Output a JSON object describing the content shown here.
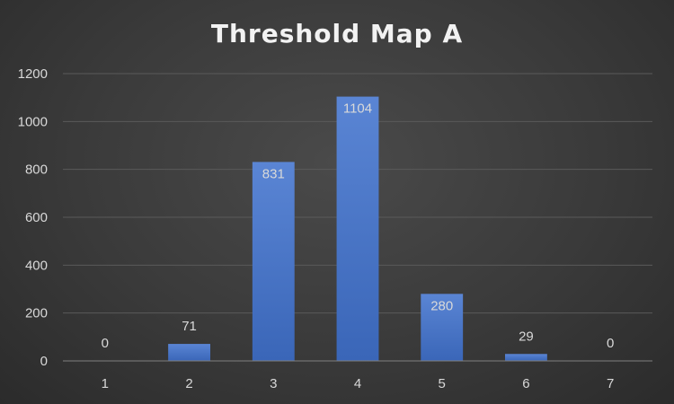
{
  "chart_data": {
    "type": "bar",
    "title": "Threshold Map A",
    "xlabel": "",
    "ylabel": "",
    "categories": [
      "1",
      "2",
      "3",
      "4",
      "5",
      "6",
      "7"
    ],
    "values": [
      0,
      71,
      831,
      1104,
      280,
      29,
      0
    ],
    "ylim": [
      0,
      1200
    ],
    "yticks": [
      0,
      200,
      400,
      600,
      800,
      1000,
      1200
    ],
    "grid": true,
    "legend": "none",
    "bar_color": "#4472c4",
    "data_labels": true
  }
}
